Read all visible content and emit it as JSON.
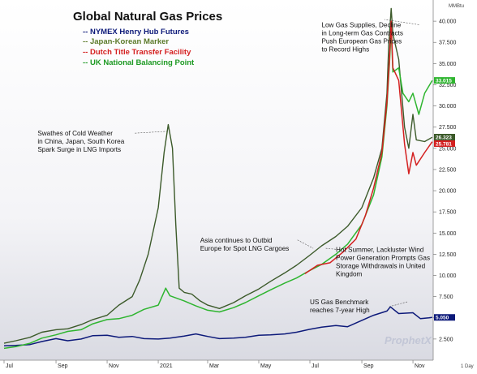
{
  "chart_data": {
    "type": "line",
    "title": "Global Natural Gas Prices",
    "unit_label": "MMBtu",
    "interval_label": "1 Day",
    "watermark": "ProphetX",
    "y_ticks": [
      "2.500",
      "5.000",
      "7.500",
      "10.000",
      "12.500",
      "15.000",
      "17.500",
      "20.000",
      "22.500",
      "25.000",
      "27.500",
      "30.000",
      "32.500",
      "35.000",
      "37.500",
      "40.000"
    ],
    "ylim": [
      0,
      42.5
    ],
    "x_ticks": [
      "Jul",
      "Sep",
      "Nov",
      "2021",
      "Mar",
      "May",
      "Jul",
      "Sep",
      "Nov"
    ],
    "x_tick_dates": [
      "2020-07-01",
      "2020-09-01",
      "2020-11-01",
      "2021-01-01",
      "2021-03-01",
      "2021-05-01",
      "2021-07-01",
      "2021-09-01",
      "2021-11-01"
    ],
    "x_range": [
      "2020-07-01",
      "2021-11-30"
    ],
    "last_values": [
      "33.015",
      "26.323",
      "25.781",
      "5.050"
    ],
    "series": [
      {
        "name": "NYMEX Henry Hub Futures",
        "legend_label": "-- NYMEX Henry Hub Futures",
        "color": "#0d1a7a",
        "last_value": "5.050",
        "points": [
          [
            "2020-07-01",
            1.7
          ],
          [
            "2020-07-15",
            1.75
          ],
          [
            "2020-08-01",
            1.85
          ],
          [
            "2020-08-15",
            2.2
          ],
          [
            "2020-09-01",
            2.55
          ],
          [
            "2020-09-15",
            2.3
          ],
          [
            "2020-10-01",
            2.5
          ],
          [
            "2020-10-15",
            2.9
          ],
          [
            "2020-11-01",
            2.95
          ],
          [
            "2020-11-15",
            2.7
          ],
          [
            "2020-12-01",
            2.8
          ],
          [
            "2020-12-15",
            2.55
          ],
          [
            "2021-01-01",
            2.5
          ],
          [
            "2021-01-15",
            2.6
          ],
          [
            "2021-02-01",
            2.85
          ],
          [
            "2021-02-15",
            3.1
          ],
          [
            "2021-03-01",
            2.8
          ],
          [
            "2021-03-15",
            2.55
          ],
          [
            "2021-04-01",
            2.6
          ],
          [
            "2021-04-15",
            2.7
          ],
          [
            "2021-05-01",
            2.95
          ],
          [
            "2021-05-15",
            3.0
          ],
          [
            "2021-06-01",
            3.1
          ],
          [
            "2021-06-15",
            3.3
          ],
          [
            "2021-07-01",
            3.65
          ],
          [
            "2021-07-15",
            3.9
          ],
          [
            "2021-08-01",
            4.1
          ],
          [
            "2021-08-15",
            3.95
          ],
          [
            "2021-09-01",
            4.7
          ],
          [
            "2021-09-15",
            5.3
          ],
          [
            "2021-10-01",
            5.8
          ],
          [
            "2021-10-05",
            6.3
          ],
          [
            "2021-10-15",
            5.5
          ],
          [
            "2021-11-01",
            5.6
          ],
          [
            "2021-11-10",
            4.9
          ],
          [
            "2021-11-20",
            5.0
          ],
          [
            "2021-11-24",
            5.05
          ]
        ]
      },
      {
        "name": "Japan-Korean Marker",
        "legend_label": "-- Japan-Korean Marker",
        "color": "#3c5a2a",
        "last_value": "26.323",
        "points": [
          [
            "2020-07-01",
            2.0
          ],
          [
            "2020-07-15",
            2.3
          ],
          [
            "2020-08-01",
            2.7
          ],
          [
            "2020-08-15",
            3.3
          ],
          [
            "2020-09-01",
            3.6
          ],
          [
            "2020-09-15",
            3.7
          ],
          [
            "2020-10-01",
            4.2
          ],
          [
            "2020-10-15",
            4.8
          ],
          [
            "2020-11-01",
            5.3
          ],
          [
            "2020-11-15",
            6.5
          ],
          [
            "2020-12-01",
            7.5
          ],
          [
            "2020-12-10",
            9.5
          ],
          [
            "2020-12-20",
            12.5
          ],
          [
            "2021-01-01",
            18.0
          ],
          [
            "2021-01-08",
            24.5
          ],
          [
            "2021-01-13",
            27.8
          ],
          [
            "2021-01-18",
            25.0
          ],
          [
            "2021-01-22",
            16.0
          ],
          [
            "2021-01-26",
            8.5
          ],
          [
            "2021-02-01",
            8.0
          ],
          [
            "2021-02-10",
            7.8
          ],
          [
            "2021-02-20",
            7.0
          ],
          [
            "2021-03-01",
            6.5
          ],
          [
            "2021-03-15",
            6.1
          ],
          [
            "2021-04-01",
            6.8
          ],
          [
            "2021-04-15",
            7.6
          ],
          [
            "2021-05-01",
            8.4
          ],
          [
            "2021-05-15",
            9.3
          ],
          [
            "2021-06-01",
            10.3
          ],
          [
            "2021-06-15",
            11.2
          ],
          [
            "2021-07-01",
            12.4
          ],
          [
            "2021-07-15",
            13.5
          ],
          [
            "2021-08-01",
            14.6
          ],
          [
            "2021-08-15",
            15.8
          ],
          [
            "2021-09-01",
            18.0
          ],
          [
            "2021-09-15",
            21.5
          ],
          [
            "2021-09-25",
            25.0
          ],
          [
            "2021-10-01",
            31.5
          ],
          [
            "2021-10-03",
            37.0
          ],
          [
            "2021-10-06",
            41.5
          ],
          [
            "2021-10-08",
            38.5
          ],
          [
            "2021-10-15",
            35.5
          ],
          [
            "2021-10-22",
            27.5
          ],
          [
            "2021-10-27",
            25.0
          ],
          [
            "2021-11-01",
            29.0
          ],
          [
            "2021-11-05",
            26.0
          ],
          [
            "2021-11-15",
            25.8
          ],
          [
            "2021-11-24",
            26.3
          ]
        ]
      },
      {
        "name": "Dutch Title Transfer Facility",
        "legend_label": "-- Dutch Title Transfer Facility",
        "color": "#d42020",
        "last_value": "25.781",
        "points": [
          [
            "2021-06-25",
            10.2
          ],
          [
            "2021-07-10",
            11.2
          ],
          [
            "2021-07-25",
            11.5
          ],
          [
            "2021-08-10",
            12.8
          ],
          [
            "2021-08-25",
            14.3
          ],
          [
            "2021-09-05",
            17.0
          ],
          [
            "2021-09-15",
            20.3
          ],
          [
            "2021-09-25",
            24.5
          ],
          [
            "2021-10-01",
            30.5
          ],
          [
            "2021-10-04",
            35.5
          ],
          [
            "2021-10-06",
            40.0
          ],
          [
            "2021-10-08",
            34.5
          ],
          [
            "2021-10-15",
            33.0
          ],
          [
            "2021-10-22",
            25.5
          ],
          [
            "2021-10-27",
            22.0
          ],
          [
            "2021-11-01",
            24.5
          ],
          [
            "2021-11-05",
            23.0
          ],
          [
            "2021-11-15",
            24.5
          ],
          [
            "2021-11-24",
            25.78
          ]
        ]
      },
      {
        "name": "UK National Balancing Point",
        "legend_label": "-- UK National Balancing Point",
        "color": "#2fb530",
        "last_value": "33.015",
        "points": [
          [
            "2020-07-01",
            1.4
          ],
          [
            "2020-07-15",
            1.6
          ],
          [
            "2020-08-01",
            2.0
          ],
          [
            "2020-08-15",
            2.6
          ],
          [
            "2020-09-01",
            3.0
          ],
          [
            "2020-09-15",
            3.4
          ],
          [
            "2020-10-01",
            3.6
          ],
          [
            "2020-10-15",
            4.3
          ],
          [
            "2020-11-01",
            4.8
          ],
          [
            "2020-11-15",
            4.9
          ],
          [
            "2020-12-01",
            5.3
          ],
          [
            "2020-12-15",
            6.0
          ],
          [
            "2021-01-01",
            6.5
          ],
          [
            "2021-01-10",
            8.5
          ],
          [
            "2021-01-15",
            7.6
          ],
          [
            "2021-02-01",
            7.0
          ],
          [
            "2021-02-15",
            6.4
          ],
          [
            "2021-03-01",
            5.9
          ],
          [
            "2021-03-15",
            5.7
          ],
          [
            "2021-04-01",
            6.2
          ],
          [
            "2021-04-15",
            6.8
          ],
          [
            "2021-05-01",
            7.6
          ],
          [
            "2021-05-15",
            8.3
          ],
          [
            "2021-06-01",
            9.1
          ],
          [
            "2021-06-15",
            9.7
          ],
          [
            "2021-07-01",
            10.6
          ],
          [
            "2021-07-15",
            11.3
          ],
          [
            "2021-08-01",
            12.5
          ],
          [
            "2021-08-15",
            13.7
          ],
          [
            "2021-09-01",
            16.0
          ],
          [
            "2021-09-15",
            19.5
          ],
          [
            "2021-09-25",
            24.0
          ],
          [
            "2021-10-01",
            30.0
          ],
          [
            "2021-10-04",
            35.0
          ],
          [
            "2021-10-06",
            39.0
          ],
          [
            "2021-10-08",
            34.0
          ],
          [
            "2021-10-15",
            34.5
          ],
          [
            "2021-10-20",
            31.5
          ],
          [
            "2021-10-27",
            30.5
          ],
          [
            "2021-11-01",
            31.5
          ],
          [
            "2021-11-08",
            29.0
          ],
          [
            "2021-11-15",
            31.5
          ],
          [
            "2021-11-24",
            33.0
          ]
        ]
      }
    ],
    "annotations": [
      {
        "lines": [
          "Swathes of Cold Weather",
          "in China, Japan, South Korea",
          "Spark Surge in LNG Imports"
        ],
        "x": "2020-08-10",
        "y": 26.5,
        "arrow_to": [
          "2021-01-11",
          27.0
        ]
      },
      {
        "lines": [
          "Low Gas Supplies, Decline",
          "in Long-term Gas Contracts",
          "Push European Gas Prices",
          "to Record Highs"
        ],
        "x": "2021-07-15",
        "y": 39.3,
        "arrow_to": [
          "2021-09-28",
          40.2
        ]
      },
      {
        "lines": [
          "Asia continues to Outbid",
          "Europe for Spot LNG Cargoes"
        ],
        "x": "2021-02-20",
        "y": 13.9,
        "arrow_to": [
          "2021-07-05",
          13.2
        ]
      },
      {
        "lines": [
          "Hot Summer, Lackluster Wind",
          "Power Generation Prompts Gas",
          "Storage Withdrawals in United",
          "Kingdom"
        ],
        "x": "2021-08-01",
        "y": 12.8,
        "arrow_to": [
          "2021-07-20",
          13.2
        ]
      },
      {
        "lines": [
          "US Gas Benchmark",
          "reaches 7-year High"
        ],
        "x": "2021-07-01",
        "y": 6.6,
        "arrow_to": [
          "2021-10-03",
          6.3
        ]
      }
    ]
  }
}
